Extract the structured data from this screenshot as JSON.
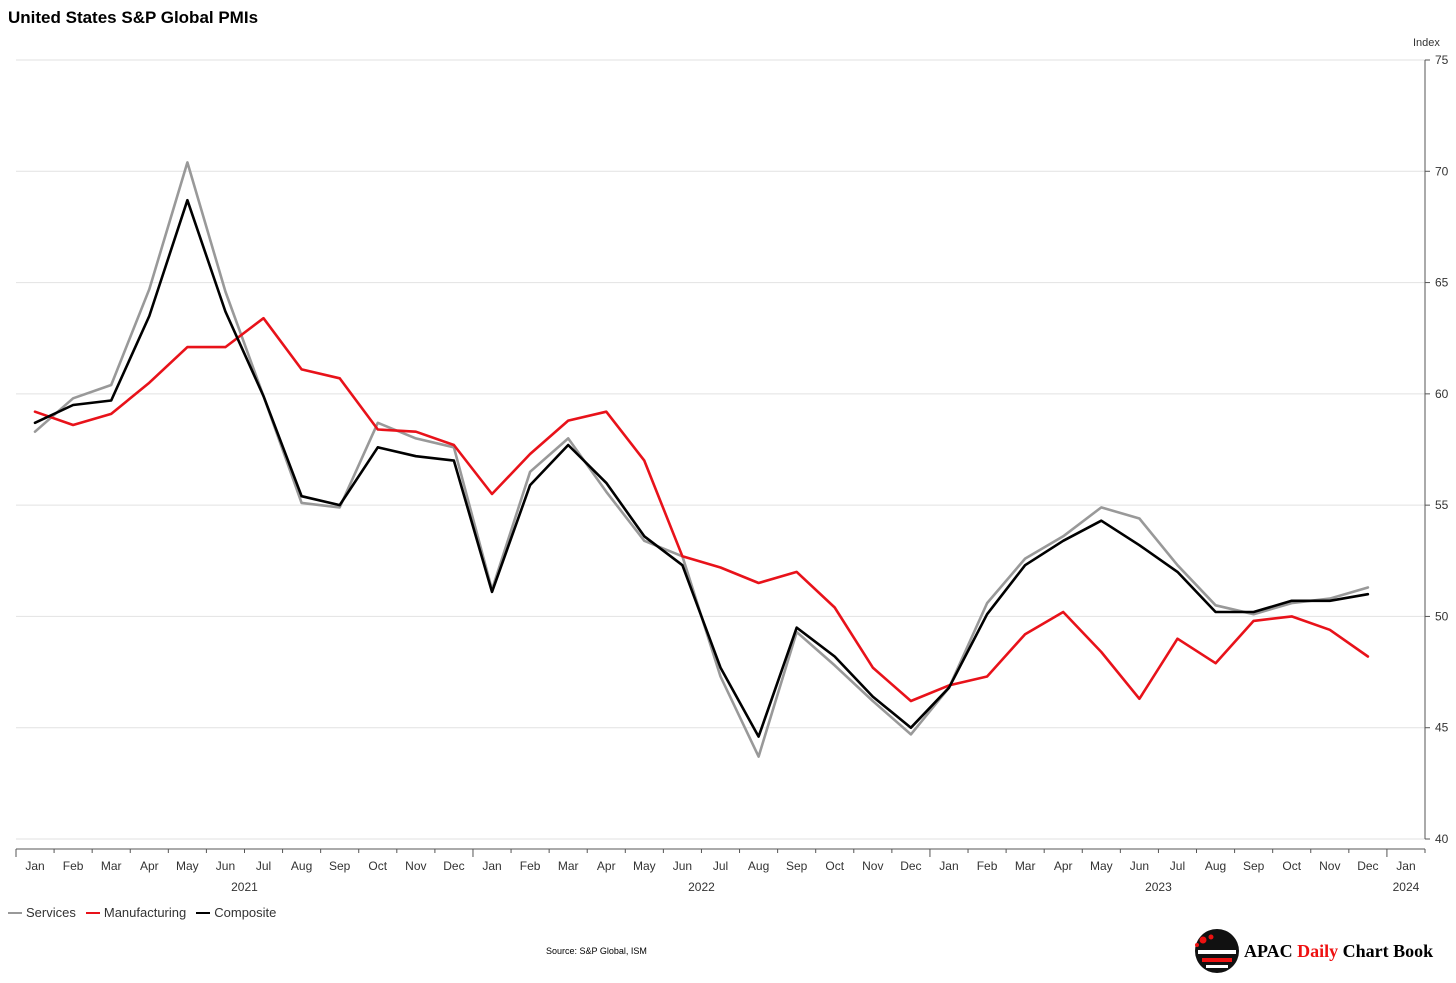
{
  "title": "United States S&P Global PMIs",
  "source": "Source: S&P Global, ISM",
  "brand": {
    "part1": "APAC ",
    "part2": "Daily",
    "part3": " Chart Book"
  },
  "colors": {
    "services": "#999999",
    "manufacturing": "#e8121a",
    "composite": "#000000",
    "grid": "#e2e2e2"
  },
  "chart_data": {
    "type": "line",
    "ylabel": "Index",
    "ylim": [
      40,
      75
    ],
    "yticks": [
      40,
      45,
      50,
      55,
      60,
      65,
      70,
      75
    ],
    "grid": true,
    "legend_position": "bottom-left",
    "x_tick_labels": [
      "Jan",
      "Feb",
      "Mar",
      "Apr",
      "May",
      "Jun",
      "Jul",
      "Aug",
      "Sep",
      "Oct",
      "Nov",
      "Dec",
      "Jan",
      "Feb",
      "Mar",
      "Apr",
      "May",
      "Jun",
      "Jul",
      "Aug",
      "Sep",
      "Oct",
      "Nov",
      "Dec",
      "Jan",
      "Feb",
      "Mar",
      "Apr",
      "May",
      "Jun",
      "Jul",
      "Aug",
      "Sep",
      "Oct",
      "Nov",
      "Dec",
      "Jan"
    ],
    "year_labels": [
      {
        "label": "2021",
        "at": 5.5
      },
      {
        "label": "2022",
        "at": 17.5
      },
      {
        "label": "2023",
        "at": 29.5
      },
      {
        "label": "2024",
        "at": 36
      }
    ],
    "x": [
      "2021-01",
      "2021-02",
      "2021-03",
      "2021-04",
      "2021-05",
      "2021-06",
      "2021-07",
      "2021-08",
      "2021-09",
      "2021-10",
      "2021-11",
      "2021-12",
      "2022-01",
      "2022-02",
      "2022-03",
      "2022-04",
      "2022-05",
      "2022-06",
      "2022-07",
      "2022-08",
      "2022-09",
      "2022-10",
      "2022-11",
      "2022-12",
      "2023-01",
      "2023-02",
      "2023-03",
      "2023-04",
      "2023-05",
      "2023-06",
      "2023-07",
      "2023-08",
      "2023-09",
      "2023-10",
      "2023-11",
      "2023-12"
    ],
    "series": [
      {
        "name": "Services",
        "key": "services",
        "values": [
          58.3,
          59.8,
          60.4,
          64.7,
          70.4,
          64.6,
          59.9,
          55.1,
          54.9,
          58.7,
          58.0,
          57.6,
          51.2,
          56.5,
          58.0,
          55.6,
          53.4,
          52.7,
          47.3,
          43.7,
          49.3,
          47.8,
          46.2,
          44.7,
          46.8,
          50.6,
          52.6,
          53.6,
          54.9,
          54.4,
          52.3,
          50.5,
          50.1,
          50.6,
          50.8,
          51.3
        ]
      },
      {
        "name": "Manufacturing",
        "key": "manufacturing",
        "values": [
          59.2,
          58.6,
          59.1,
          60.5,
          62.1,
          62.1,
          63.4,
          61.1,
          60.7,
          58.4,
          58.3,
          57.7,
          55.5,
          57.3,
          58.8,
          59.2,
          57.0,
          52.7,
          52.2,
          51.5,
          52.0,
          50.4,
          47.7,
          46.2,
          46.9,
          47.3,
          49.2,
          50.2,
          48.4,
          46.3,
          49.0,
          47.9,
          49.8,
          50.0,
          49.4,
          48.2
        ]
      },
      {
        "name": "Composite",
        "key": "composite",
        "values": [
          58.7,
          59.5,
          59.7,
          63.5,
          68.7,
          63.7,
          59.9,
          55.4,
          55.0,
          57.6,
          57.2,
          57.0,
          51.1,
          55.9,
          57.7,
          56.0,
          53.6,
          52.3,
          47.7,
          44.6,
          49.5,
          48.2,
          46.4,
          45.0,
          46.8,
          50.1,
          52.3,
          53.4,
          54.3,
          53.2,
          52.0,
          50.2,
          50.2,
          50.7,
          50.7,
          51.0
        ]
      }
    ]
  }
}
